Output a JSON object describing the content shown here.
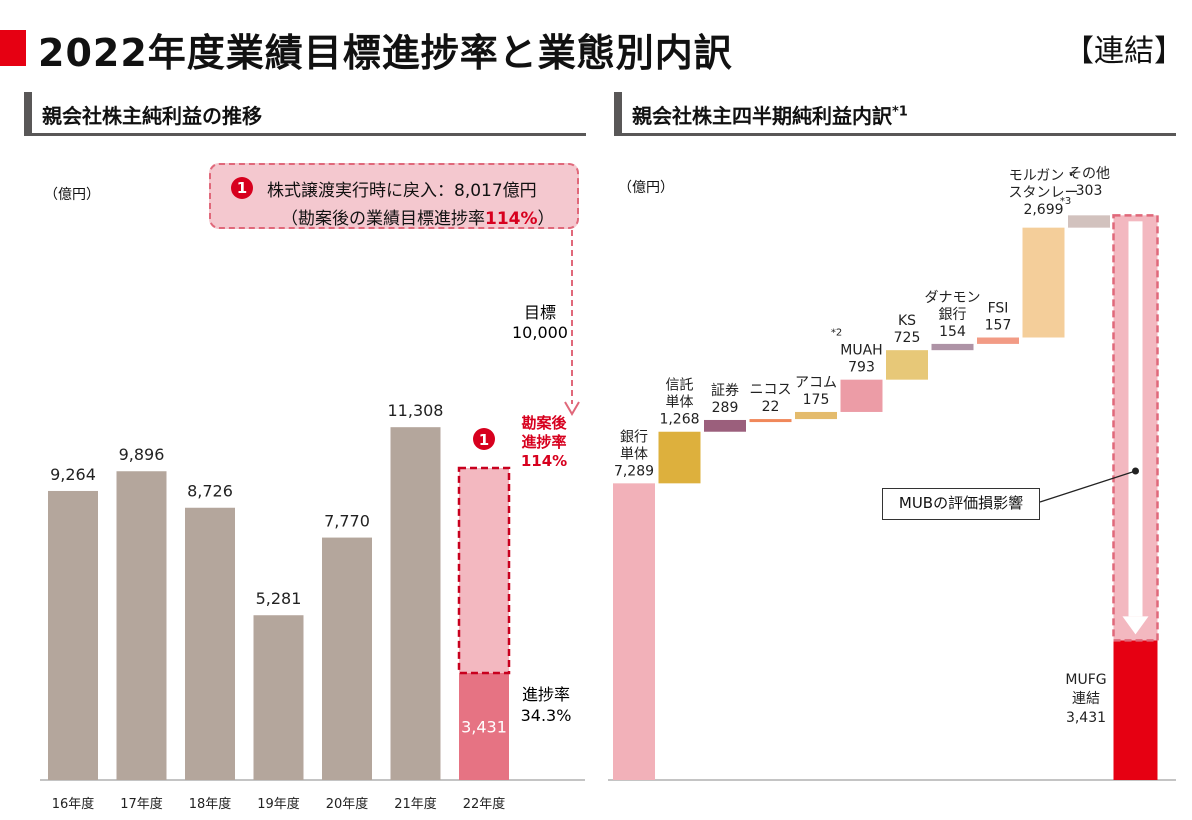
{
  "title": "2022年度業績目標進捗率と業態別内訳",
  "scope_tag": "【連結】",
  "left_panel": {
    "heading": "親会社株主純利益の推移",
    "unit": "（億円）",
    "callout": {
      "badge": "1",
      "line1": "株式譲渡実行時に戻入：8,017億円",
      "line2_prefix": "（勘案後の業績目標進捗率",
      "line2_value": "114%",
      "line2_suffix": "）"
    },
    "annotations": {
      "target_label": "目標",
      "target_value": "10,000",
      "adjusted_badge": "1",
      "adjusted_l1": "勘案後",
      "adjusted_l2": "進捗率",
      "adjusted_l3": "114%",
      "progress_label": "進捗率",
      "progress_value": "34.3%"
    },
    "colors": {
      "bar": "#b4a69c",
      "actual": "#e67383",
      "target_fill": "#f3b8c0",
      "target_border": "#c8001e",
      "accent": "#d7001e"
    }
  },
  "right_panel": {
    "heading": "親会社株主四半期純利益内訳",
    "heading_sup": "*1",
    "unit": "（億円）",
    "mub_label": "MUBの評価損影響",
    "colors": {
      "total": "#e60012",
      "outline": "#e0687a"
    }
  },
  "chart_data": [
    {
      "type": "bar",
      "title": "親会社株主純利益の推移",
      "ylabel": "（億円）",
      "categories": [
        "16年度",
        "17年度",
        "18年度",
        "19年度",
        "20年度",
        "21年度",
        "22年度"
      ],
      "values": [
        9264,
        9896,
        8726,
        5281,
        7770,
        11308,
        3431
      ],
      "value_labels": [
        "9,264",
        "9,896",
        "8,726",
        "5,281",
        "7,770",
        "11,308",
        "3,431"
      ],
      "target": 10000,
      "ylim": [
        0,
        13500
      ],
      "legend": "none",
      "grid": false
    },
    {
      "type": "waterfall",
      "title": "親会社株主四半期純利益内訳",
      "ylabel": "（億円）",
      "steps": [
        {
          "label_lines": [
            "銀行",
            "単体"
          ],
          "value": 7289,
          "value_label": "7,289",
          "color": "#f2b1b9"
        },
        {
          "label_lines": [
            "信託",
            "単体"
          ],
          "value": 1268,
          "value_label": "1,268",
          "color": "#ddb03d"
        },
        {
          "label_lines": [
            "証券"
          ],
          "value": 289,
          "value_label": "289",
          "color": "#9b5f7c"
        },
        {
          "label_lines": [
            "ニコス"
          ],
          "value": 22,
          "value_label": "22",
          "color": "#f0885a"
        },
        {
          "label_lines": [
            "アコム"
          ],
          "value": 175,
          "value_label": "175",
          "color": "#e4bb6c"
        },
        {
          "label_lines": [
            "MUAH"
          ],
          "value": 793,
          "value_label": "793",
          "color": "#ec9ca6",
          "note": "*2"
        },
        {
          "label_lines": [
            "KS"
          ],
          "value": 725,
          "value_label": "725",
          "color": "#e7c878"
        },
        {
          "label_lines": [
            "ダナモン",
            "銀行"
          ],
          "value": 154,
          "value_label": "154",
          "color": "#ae93a6"
        },
        {
          "label_lines": [
            "FSI"
          ],
          "value": 157,
          "value_label": "157",
          "color": "#f29b85"
        },
        {
          "label_lines": [
            "モルガン・",
            "スタンレー"
          ],
          "value": 2699,
          "value_label": "2,699",
          "color": "#f4ce9a",
          "note": "*3"
        },
        {
          "label_lines": [
            "その他"
          ],
          "value": 303,
          "value_label": "303",
          "color": "#d2c2be"
        }
      ],
      "total": {
        "label_lines": [
          "MUFG",
          "連結"
        ],
        "value": 3431,
        "value_label": "3,431"
      },
      "ylim": [
        0,
        14000
      ],
      "legend": "none",
      "grid": false
    }
  ]
}
